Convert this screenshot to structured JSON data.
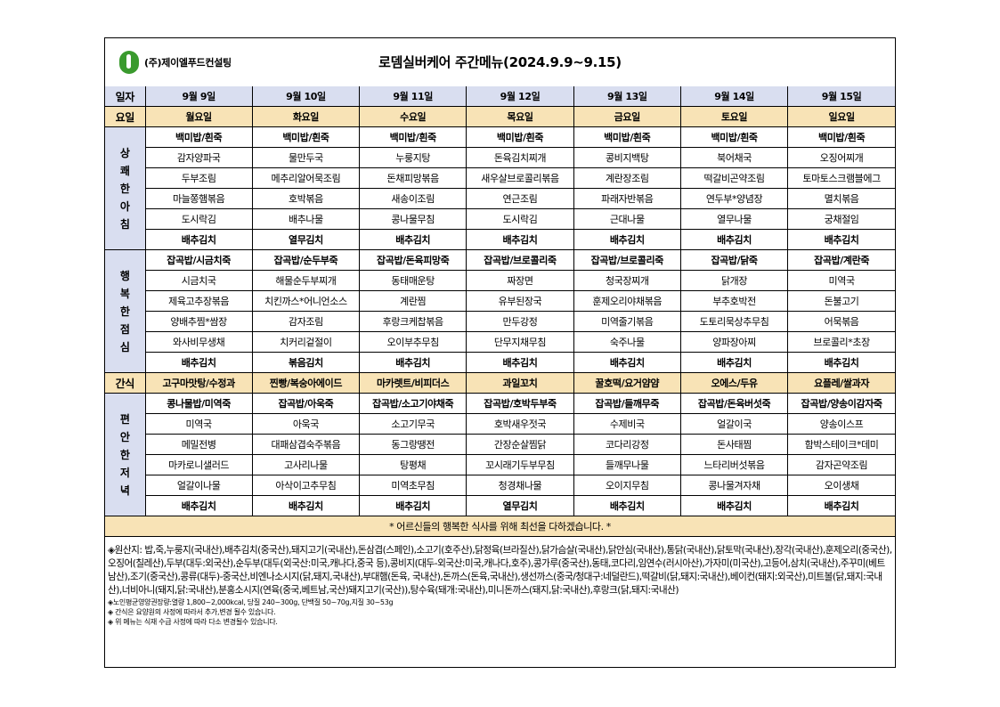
{
  "company": "(주)제이엘푸드컨설팅",
  "title": "로뎀실버케어 주간메뉴(2024.9.9~9.15)",
  "labels": {
    "date": "일자",
    "day": "요일",
    "snack": "간식"
  },
  "dates": [
    "9월 9일",
    "9월 10일",
    "9월 11일",
    "9월 12일",
    "9월 13일",
    "9월 14일",
    "9월 15일"
  ],
  "days": [
    "월요일",
    "화요일",
    "수요일",
    "목요일",
    "금요일",
    "토요일",
    "일요일"
  ],
  "meals": [
    {
      "label": "상\n쾌\n한\n아\n침",
      "rows": [
        [
          "백미밥/흰죽",
          "백미밥/흰죽",
          "백미밥/흰죽",
          "백미밥/흰죽",
          "백미밥/흰죽",
          "백미밥/흰죽",
          "백미밥/흰죽"
        ],
        [
          "감자양파국",
          "물만두국",
          "누룽지탕",
          "돈육김치찌개",
          "콩비지백탕",
          "북어채국",
          "오징어찌개"
        ],
        [
          "두부조림",
          "메추리알어묵조림",
          "돈채피망볶음",
          "새우살브로콜리볶음",
          "계란장조림",
          "떡갈비곤약조림",
          "토마토스크램블에그"
        ],
        [
          "마늘쫑햄볶음",
          "호박볶음",
          "새송이조림",
          "연근조림",
          "파래자반볶음",
          "연두부*양념장",
          "멸치볶음"
        ],
        [
          "도시락김",
          "배추나물",
          "콩나물무침",
          "도시락김",
          "근대나물",
          "열무나물",
          "궁채절임"
        ],
        [
          "배추김치",
          "열무김치",
          "배추김치",
          "배추김치",
          "배추김치",
          "배추김치",
          "배추김치"
        ]
      ]
    },
    {
      "label": "행\n복\n한\n점\n심",
      "rows": [
        [
          "잡곡밥/시금치죽",
          "잡곡밥/순두부죽",
          "잡곡밥/돈육피망죽",
          "잡곡밥/브로콜리죽",
          "잡곡밥/브로콜리죽",
          "잡곡밥/닭죽",
          "잡곡밥/계란죽"
        ],
        [
          "시금치국",
          "해물순두부찌개",
          "동태매운탕",
          "짜장면",
          "청국장찌개",
          "닭개장",
          "미역국"
        ],
        [
          "제육고추장볶음",
          "치킨까스*어니언소스",
          "계란찜",
          "유부된장국",
          "훈제오리야채볶음",
          "부추호박전",
          "돈불고기"
        ],
        [
          "양배추찜*쌈장",
          "감자조림",
          "후랑크케찹볶음",
          "만두강정",
          "미역줄기볶음",
          "도토리묵상추무침",
          "어묵볶음"
        ],
        [
          "와사비무생채",
          "치커리겉절이",
          "오이부추무침",
          "단무지채무침",
          "숙주나물",
          "양파장아찌",
          "브로콜리*초장"
        ],
        [
          "배추김치",
          "볶음김치",
          "배추김치",
          "배추김치",
          "배추김치",
          "배추김치",
          "배추김치"
        ]
      ]
    }
  ],
  "snacks": [
    "고구마맛탕/수정과",
    "찐빵/복숭아에이드",
    "마카렛트/비피더스",
    "과일꼬치",
    "꿀호떡/요거얌얌",
    "오에스/두유",
    "요플레/쌀과자"
  ],
  "dinner": {
    "label": "편\n안\n한\n저\n녁",
    "rows": [
      [
        "콩나물밥/미역죽",
        "잡곡밥/아욱죽",
        "잡곡밥/소고기야채죽",
        "잡곡밥/호박두부죽",
        "잡곡밥/들깨무죽",
        "잡곡밥/돈육버섯죽",
        "잡곡밥/양송이감자죽"
      ],
      [
        "미역국",
        "아욱국",
        "소고기무국",
        "호박새우젓국",
        "수제비국",
        "얼갈이국",
        "양송이스프"
      ],
      [
        "메밀전병",
        "대패삼겹숙주볶음",
        "동그랑땡전",
        "간장순살찜닭",
        "코다리강정",
        "돈사태찜",
        "함박스테이크*데미"
      ],
      [
        "마카로니샐러드",
        "고사리나물",
        "탕평채",
        "꼬시래기두부무침",
        "들깨무나물",
        "느타리버섯볶음",
        "감자곤약조림"
      ],
      [
        "얼갈이나물",
        "아삭이고추무침",
        "미역초무침",
        "청경채나물",
        "오이지무침",
        "콩나물겨자채",
        "오이생채"
      ],
      [
        "배추김치",
        "배추김치",
        "배추김치",
        "열무김치",
        "배추김치",
        "배추김치",
        "배추김치"
      ]
    ]
  },
  "notice": "* 어르신들의 행복한 식사를 위해 최선을 다하겠습니다. *",
  "origin": "◈원산지: 밥,죽,누룽지(국내산),배추김치(중국산),돼지고기(국내산),돈삼겹(스페인),소고기(호주산),닭정육(브라질산),닭가슴살(국내산),닭안심(국내산),통닭(국내산),닭토막(국내산),장각(국내산),훈제오리(중국산),오징어(칠레산),두부(대두:외국산),순두부(대두(외국산:미국,캐나다,중국 등),콩비지(대두-외국산:미국,캐나다,호주),콩가루(중국산),동태,코다리,임연수(러시아산),가자미(미국산),고등어,삼치(국내산),주꾸미(베트남산),조기(중국산),콩류(대두)-중국산,비엔나소시지(닭,돼지,국내산),부대햄(돈육, 국내산),돈까스(돈육,국내산),생선까스(중국/청대구:네덜란드),떡갈비(닭,돼지:국내산),베이컨(돼지:외국산),미트볼(닭,돼지:국내산),너비아니(돼지,닭:국내산),분홍소시지(연육(중국,베트남,국산)돼지고기(국산)),탕수육(돼개:국내산),미니돈까스(돼지,닭:국내산),후랑크(닭,돼지:국내산)",
  "notes": [
    "◈노인평균영양권장량:열량 1,800~2,000kcal, 당질 240~300g, 단백질 50~70g,지질 30~53g",
    "◈ 간식은 요양원의 사정에 따라서 추가,변경 될수 있습니다.",
    "◈ 위 메뉴는 식재 수급 사정에 따라 다소 변경될수 있습니다."
  ]
}
